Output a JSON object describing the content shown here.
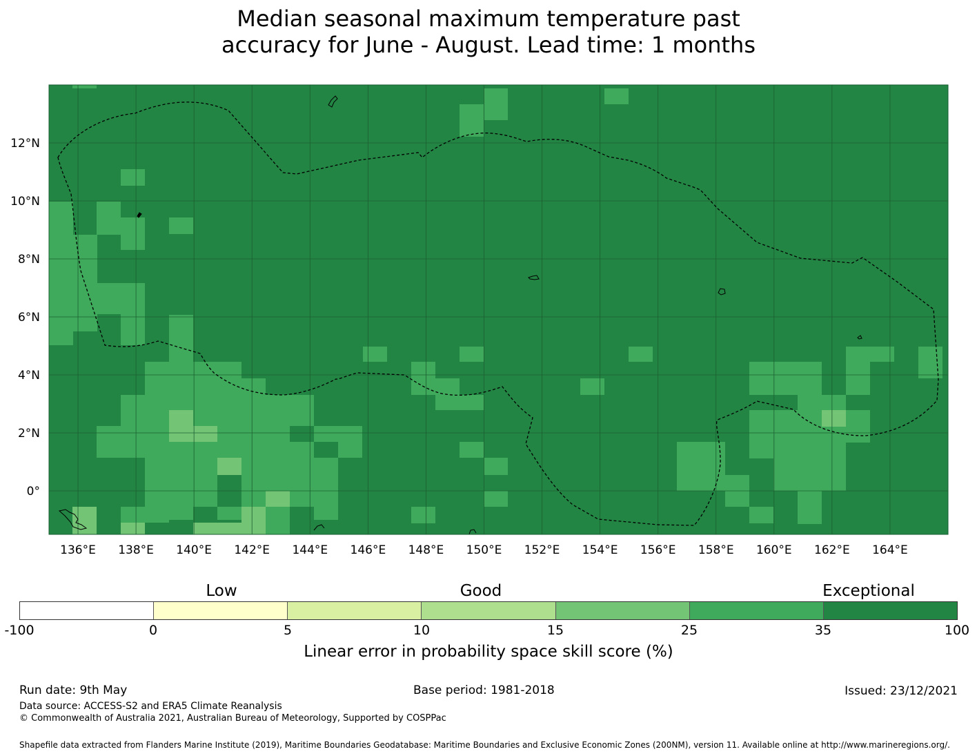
{
  "title": {
    "line1": "Median seasonal maximum temperature past",
    "line2": "accuracy for June - August. Lead time: 1 months"
  },
  "map": {
    "lon_labels": [
      "136°E",
      "138°E",
      "140°E",
      "142°E",
      "144°E",
      "146°E",
      "148°E",
      "150°E",
      "152°E",
      "154°E",
      "156°E",
      "158°E",
      "160°E",
      "162°E",
      "164°E"
    ],
    "lat_labels": [
      "12°N",
      "10°N",
      "8°N",
      "6°N",
      "4°N",
      "2°N",
      "0°"
    ],
    "lon_range": [
      135.0,
      166.0
    ],
    "lat_range": [
      -1.5,
      14.0
    ],
    "lon_ticks": [
      136,
      138,
      140,
      142,
      144,
      146,
      148,
      150,
      152,
      154,
      156,
      158,
      160,
      162,
      164
    ],
    "lat_ticks": [
      12,
      10,
      8,
      6,
      4,
      2,
      0
    ],
    "background_class": "Exceptional (35-100)",
    "colors": {
      "exceptional": "#238543",
      "good_high": "#3faa5b",
      "good_mid": "#74c476",
      "good_low": "#addf8f",
      "low_high": "#d9f0a3",
      "low_low": "#ffffcc",
      "none": "#ffffff"
    }
  },
  "colorbar": {
    "categories": [
      "Low",
      "Good",
      "Exceptional"
    ],
    "ticks": [
      "-100",
      "0",
      "5",
      "10",
      "15",
      "25",
      "35",
      "100"
    ],
    "colors": [
      "#ffffff",
      "#ffffcc",
      "#d9f0a3",
      "#addf8f",
      "#74c476",
      "#3faa5b",
      "#238543"
    ],
    "label": "Linear error in probability space skill score (%)"
  },
  "footer": {
    "run_date": "Run date: 9th May",
    "base_period": "Base period: 1981-2018",
    "issued": "Issued: 23/12/2021",
    "data_source": "Data source: ACCESS-S2 and ERA5 Climate Reanalysis",
    "copyright": "© Commonwealth of Australia 2021, Australian Bureau of Meteorology, Supported by COSPPac",
    "shapefile": "Shapefile data extracted from Flanders Marine Institute (2019), Maritime Boundaries Geodatabase: Maritime Boundaries and Exclusive Economic Zones (200NM), version 11. Available online at http://www.marineregions.org/."
  }
}
